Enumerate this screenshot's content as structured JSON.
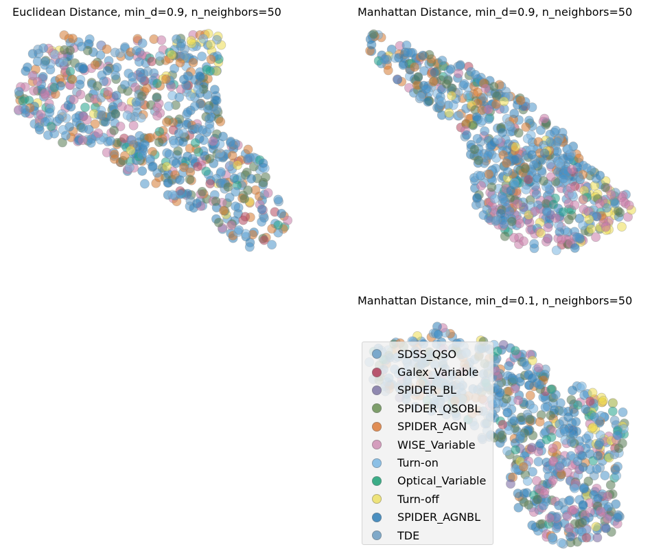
{
  "chart_data": [
    {
      "type": "scatter",
      "title": "Euclidean Distance, min_d=0.9, n_neighbors=50",
      "axes_visible": false,
      "grid": false,
      "shape": "cluster elongated from upper-left to lower-right; Turn-off concentrated at top-right tip",
      "series_order": [
        "SDSS_QSO",
        "Galex_Variable",
        "SPIDER_BL",
        "SPIDER_QSOBL",
        "SPIDER_AGN",
        "WISE_Variable",
        "Turn-on",
        "Optical_Variable",
        "Turn-off",
        "SPIDER_AGNBL",
        "TDE"
      ]
    },
    {
      "type": "scatter",
      "title": "Manhattan Distance, min_d=0.9, n_neighbors=50",
      "axes_visible": false,
      "grid": false,
      "shape": "diagonal band from top-left to lower-right; WISE_Variable concentrated in lower part, Turn-off at right tip",
      "series_order": [
        "SDSS_QSO",
        "Galex_Variable",
        "SPIDER_BL",
        "SPIDER_QSOBL",
        "SPIDER_AGN",
        "WISE_Variable",
        "Turn-on",
        "Optical_Variable",
        "Turn-off",
        "SPIDER_AGNBL",
        "TDE"
      ]
    },
    {
      "type": "scatter",
      "title": "Manhattan Distance, min_d=0.1, n_neighbors=50",
      "axes_visible": false,
      "grid": false,
      "legend_position": "lower-left",
      "shape": "broad cluster; WISE_Variable concentrated in lower-right lobe, Turn-off along right edge",
      "series_order": [
        "SDSS_QSO",
        "Galex_Variable",
        "SPIDER_BL",
        "SPIDER_QSOBL",
        "SPIDER_AGN",
        "WISE_Variable",
        "Turn-on",
        "Optical_Variable",
        "Turn-off",
        "SPIDER_AGNBL",
        "TDE"
      ]
    }
  ],
  "legend": {
    "items": [
      {
        "label": "SDSS_QSO",
        "color": "#7aa9cc"
      },
      {
        "label": "Galex_Variable",
        "color": "#b8566e"
      },
      {
        "label": "SPIDER_BL",
        "color": "#8f88b0"
      },
      {
        "label": "SPIDER_QSOBL",
        "color": "#7d9e6a"
      },
      {
        "label": "SPIDER_AGN",
        "color": "#e08d54"
      },
      {
        "label": "WISE_Variable",
        "color": "#d49dbd"
      },
      {
        "label": "Turn-on",
        "color": "#8cc0e6"
      },
      {
        "label": "Optical_Variable",
        "color": "#3bad87"
      },
      {
        "label": "Turn-off",
        "color": "#eee37a"
      },
      {
        "label": "SPIDER_AGNBL",
        "color": "#4a8fc0"
      },
      {
        "label": "TDE",
        "color": "#7fa9c9"
      }
    ]
  },
  "marker_colors": {
    "SDSS_QSO": "#4a94c8",
    "SPIDER_AGNBL": "#2f7fb8",
    "WISE_Variable": "#c97aa8",
    "SPIDER_AGN": "#d57a32",
    "SPIDER_QSOBL": "#557a52",
    "Optical_Variable": "#20a38a",
    "Turn-off": "#ecdc50",
    "Turn-on": "#78b4e0",
    "Galex_Variable": "#b5485f",
    "SPIDER_BL": "#7565a0",
    "TDE": "#6a9cc2"
  }
}
